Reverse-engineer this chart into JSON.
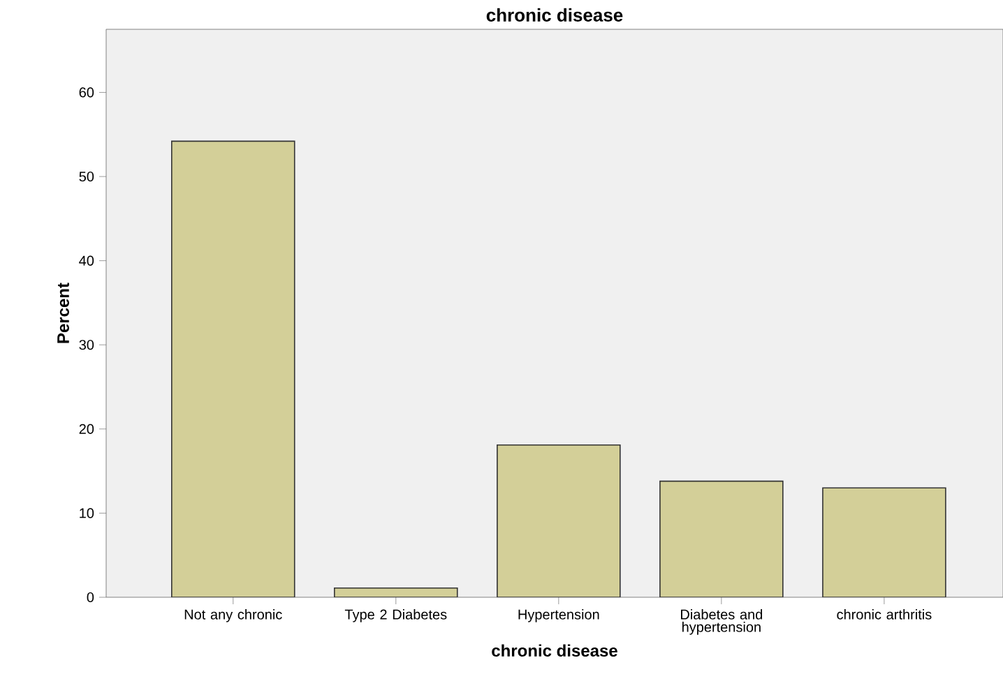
{
  "chart_data": {
    "type": "bar",
    "title": "chronic disease",
    "xlabel": "chronic disease",
    "ylabel": "Percent",
    "categories": [
      "Not any chronic",
      "Type 2 Diabetes",
      "Hypertension",
      "Diabetes and hypertension",
      "chronic arthritis"
    ],
    "values": [
      54.2,
      1.1,
      18.1,
      13.8,
      13.0
    ],
    "color": "#d3cf98",
    "ylim": [
      0,
      67.5
    ],
    "yticks": [
      0,
      10,
      20,
      30,
      40,
      50,
      60
    ],
    "grid": false
  }
}
